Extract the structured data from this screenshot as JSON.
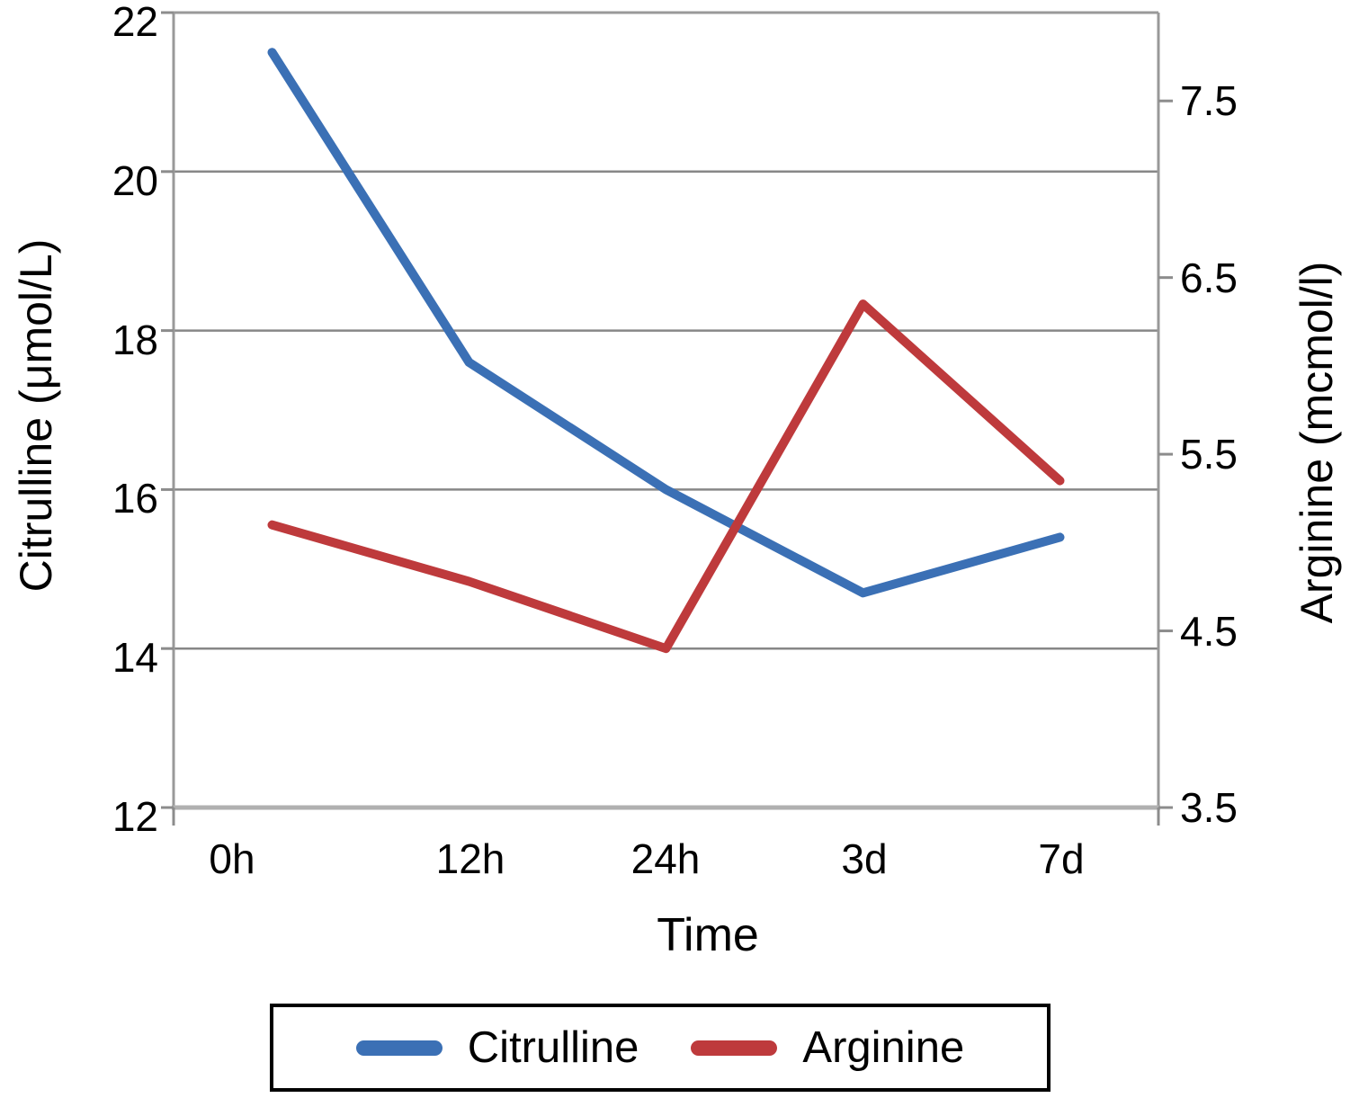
{
  "chart_data": {
    "type": "line",
    "categories": [
      "0h",
      "12h",
      "24h",
      "3d",
      "7d"
    ],
    "xlabel": "Time",
    "grid": true,
    "legend_position": "bottom",
    "frame_color": "#999999",
    "gridline_color": "#878787",
    "baseline_color": "#b0b0b0",
    "left_axis": {
      "label": "Citrulline (μmol/L)",
      "min": 12,
      "max": 22,
      "ticks": [
        22,
        20,
        18,
        16,
        14,
        12
      ]
    },
    "right_axis": {
      "label": "Arginine (mcmol/l)",
      "min": 3.5,
      "max": 8.0,
      "ticks": [
        7.5,
        6.5,
        5.5,
        4.5,
        3.5
      ]
    },
    "series": [
      {
        "name": "Citrulline",
        "axis": "left",
        "color": "#3B70B5",
        "values": [
          21.5,
          17.6,
          16.0,
          14.7,
          15.4
        ]
      },
      {
        "name": "Arginine",
        "axis": "right",
        "color": "#BE3A3C",
        "values": [
          5.1,
          4.78,
          4.4,
          6.35,
          5.35
        ]
      }
    ]
  }
}
